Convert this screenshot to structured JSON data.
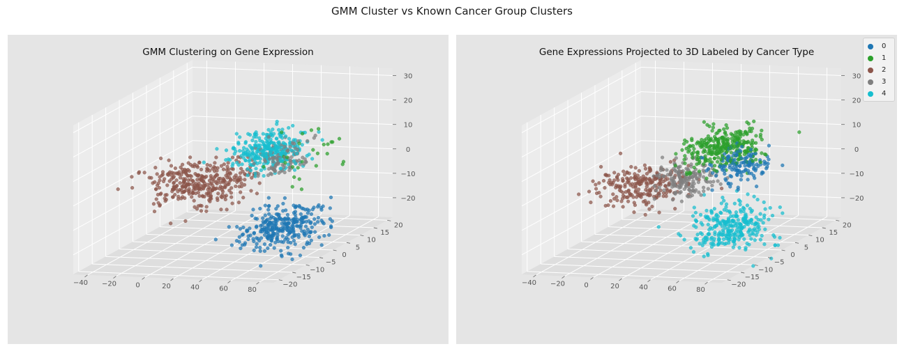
{
  "figure": {
    "suptitle": "GMM Cluster vs Known Cancer Group Clusters"
  },
  "colors": {
    "c0": "#1f77b4",
    "c1": "#2ca02c",
    "c2": "#8c564b",
    "c3": "#7f7f7f",
    "c4": "#17becf"
  },
  "chart_data": [
    {
      "type": "scatter",
      "projection": "3d",
      "title": "GMM Clustering on Gene Expression",
      "xlabel": "",
      "ylabel": "",
      "zlabel": "",
      "x_ticks": [
        "−40",
        "−20",
        "0",
        "20",
        "40",
        "60",
        "80"
      ],
      "y_ticks": [
        "−20",
        "−15",
        "−10",
        "−5",
        "0",
        "5",
        "10",
        "15",
        "20"
      ],
      "z_ticks": [
        "−20",
        "−10",
        "0",
        "10",
        "20",
        "30"
      ],
      "xlim": [
        -50,
        90
      ],
      "ylim": [
        -22,
        22
      ],
      "zlim": [
        -28,
        33
      ],
      "grid": true,
      "series": [
        {
          "color": "#1f77b4",
          "center": [
            46,
            5,
            -23
          ],
          "spread": [
            12,
            4.5,
            4
          ],
          "count": 310
        },
        {
          "color": "#8c564b",
          "center": [
            2,
            -1,
            -2
          ],
          "spread": [
            18,
            4,
            4
          ],
          "count": 360
        },
        {
          "color": "#17becf",
          "center": [
            50,
            -2,
            13
          ],
          "spread": [
            12,
            4,
            3.5
          ],
          "count": 310
        },
        {
          "color": "#7f7f7f",
          "center": [
            62,
            -4,
            11
          ],
          "spread": [
            7,
            3,
            3
          ],
          "count": 110
        },
        {
          "color": "#2ca02c",
          "center": [
            80,
            -6,
            13
          ],
          "spread": [
            10,
            5,
            6
          ],
          "count": 28
        }
      ]
    },
    {
      "type": "scatter",
      "projection": "3d",
      "title": "Gene Expressions Projected to 3D Labeled by Cancer Type",
      "xlabel": "",
      "ylabel": "",
      "zlabel": "",
      "x_ticks": [
        "−40",
        "−20",
        "0",
        "20",
        "40",
        "60",
        "80"
      ],
      "y_ticks": [
        "−20",
        "−15",
        "−10",
        "−5",
        "0",
        "5",
        "10",
        "15",
        "20"
      ],
      "z_ticks": [
        "−20",
        "−10",
        "0",
        "10",
        "20",
        "30"
      ],
      "xlim": [
        -50,
        90
      ],
      "ylim": [
        -22,
        22
      ],
      "zlim": [
        -28,
        33
      ],
      "grid": true,
      "legend": {
        "position": "top-right",
        "entries": [
          "0",
          "1",
          "2",
          "3",
          "4"
        ]
      },
      "series": [
        {
          "name": "2",
          "color": "#8c564b",
          "center": [
            -6,
            -1,
            -3
          ],
          "spread": [
            14,
            4,
            3.5
          ],
          "count": 240
        },
        {
          "name": "3",
          "color": "#7f7f7f",
          "center": [
            24,
            -1,
            0
          ],
          "spread": [
            9,
            3.5,
            3.5
          ],
          "count": 170
        },
        {
          "name": "4",
          "color": "#17becf",
          "center": [
            46,
            5,
            -23
          ],
          "spread": [
            12,
            4.5,
            4
          ],
          "count": 300
        },
        {
          "name": "1",
          "color": "#2ca02c",
          "center": [
            52,
            -2,
            14
          ],
          "spread": [
            13,
            4,
            3.5
          ],
          "count": 330
        },
        {
          "name": "0",
          "color": "#1f77b4",
          "center": [
            70,
            -5,
            9
          ],
          "spread": [
            9,
            3,
            3
          ],
          "count": 140
        }
      ]
    }
  ],
  "legend": {
    "entries": [
      {
        "label": "0",
        "color": "#1f77b4"
      },
      {
        "label": "1",
        "color": "#2ca02c"
      },
      {
        "label": "2",
        "color": "#8c564b"
      },
      {
        "label": "3",
        "color": "#7f7f7f"
      },
      {
        "label": "4",
        "color": "#17becf"
      }
    ]
  }
}
